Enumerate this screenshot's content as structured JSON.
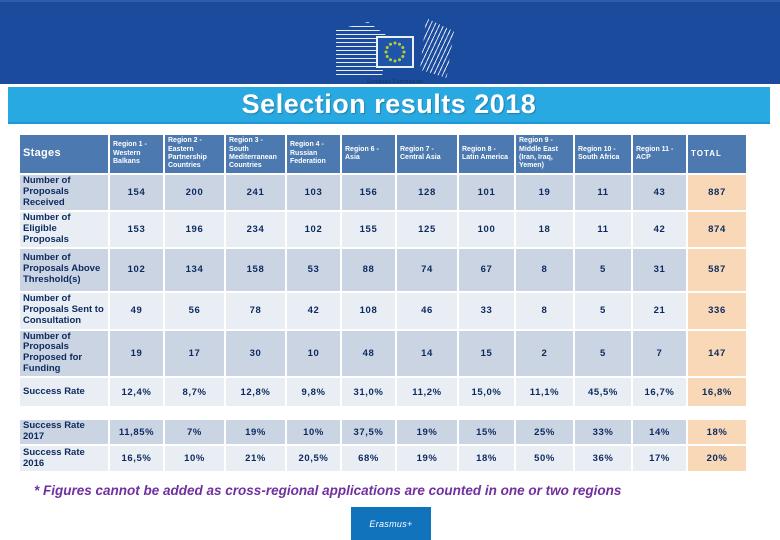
{
  "logo": {
    "caption": "European Commission"
  },
  "title_bar": {
    "title": "Selection results 2018"
  },
  "footnote": "* Figures cannot be added as cross-regional applications are counted in one or two regions",
  "badge": {
    "label": "Erasmus+"
  },
  "colors": {
    "top_band": "#1A4B9D",
    "title_bar_bg": "#29A9E1",
    "title_text": "#FFFFFF",
    "table_header_bg": "#4C79AF",
    "row_dark_bg": "#CBD4E3",
    "row_light_bg": "#E9EDF4",
    "total_column_bg": "#F8D8B6",
    "cell_text": "#0C2A5E",
    "footnote_text": "#7030A0",
    "badge_bg": "#1173BC",
    "eu_stars": "#B9CE2E"
  },
  "chart_data": {
    "type": "table",
    "title": "Selection results 2018",
    "columns": [
      "Stages",
      "Region 1 - Western Balkans",
      "Region 2 - Eastern Partnership Countries",
      "Region 3 - South Mediterranean Countries",
      "Region 4 - Russian Federation",
      "Region 6 - Asia",
      "Region 7 - Central Asia",
      "Region 8 - Latin America",
      "Region 9 - Middle East (Iran, Iraq, Yemen)",
      "Region 10 - South Africa",
      "Region 11 - ACP",
      "TOTAL"
    ],
    "rows": [
      {
        "label": "Number of Proposals Received",
        "values": [
          "154",
          "200",
          "241",
          "103",
          "156",
          "128",
          "101",
          "19",
          "11",
          "43",
          "887"
        ]
      },
      {
        "label": "Number of Eligible Proposals",
        "values": [
          "153",
          "196",
          "234",
          "102",
          "155",
          "125",
          "100",
          "18",
          "11",
          "42",
          "874"
        ]
      },
      {
        "label": "Number of Proposals Above Threshold(s)",
        "values": [
          "102",
          "134",
          "158",
          "53",
          "88",
          "74",
          "67",
          "8",
          "5",
          "31",
          "587"
        ]
      },
      {
        "label": "Number of Proposals Sent to Consultation",
        "values": [
          "49",
          "56",
          "78",
          "42",
          "108",
          "46",
          "33",
          "8",
          "5",
          "21",
          "336"
        ]
      },
      {
        "label": "Number of Proposals Proposed for Funding",
        "values": [
          "19",
          "17",
          "30",
          "10",
          "48",
          "14",
          "15",
          "2",
          "5",
          "7",
          "147"
        ]
      },
      {
        "label": "Success Rate",
        "values": [
          "12,4%",
          "8,7%",
          "12,8%",
          "9,8%",
          "31,0%",
          "11,2%",
          "15,0%",
          "11,1%",
          "45,5%",
          "16,7%",
          "16,8%"
        ]
      },
      {
        "label": "Success Rate 2017",
        "gap_before": true,
        "values": [
          "11,85%",
          "7%",
          "19%",
          "10%",
          "37,5%",
          "19%",
          "15%",
          "25%",
          "33%",
          "14%",
          "18%"
        ]
      },
      {
        "label": "Success Rate 2016",
        "values": [
          "16,5%",
          "10%",
          "21%",
          "20,5%",
          "68%",
          "19%",
          "18%",
          "50%",
          "36%",
          "17%",
          "20%"
        ]
      }
    ],
    "footnote": "* Figures cannot be added as cross-regional applications are counted in one or two regions"
  }
}
